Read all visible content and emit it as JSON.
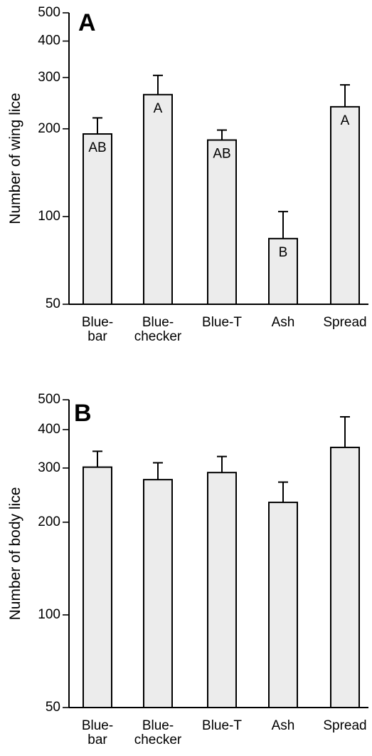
{
  "chart_data": [
    {
      "type": "bar",
      "panel_label": "A",
      "ylabel": "Number of wing lice",
      "yscale": "log",
      "ylim": [
        50,
        500
      ],
      "yticks": [
        50,
        100,
        200,
        300,
        400,
        500
      ],
      "categories": [
        [
          "Blue-",
          "bar"
        ],
        [
          "Blue-",
          "checker"
        ],
        [
          "Blue-T"
        ],
        [
          "Ash"
        ],
        [
          "Spread"
        ]
      ],
      "values": [
        192,
        262,
        183,
        84,
        238
      ],
      "error_upper": [
        218,
        305,
        198,
        104,
        283
      ],
      "significance_labels": [
        "AB",
        "A",
        "AB",
        "B",
        "A"
      ],
      "grid": false
    },
    {
      "type": "bar",
      "panel_label": "B",
      "ylabel": "Number of body lice",
      "yscale": "log",
      "ylim": [
        50,
        500
      ],
      "yticks": [
        50,
        100,
        200,
        300,
        400,
        500
      ],
      "categories": [
        [
          "Blue-",
          "bar"
        ],
        [
          "Blue-",
          "checker"
        ],
        [
          "Blue-T"
        ],
        [
          "Ash"
        ],
        [
          "Spread"
        ]
      ],
      "values": [
        302,
        275,
        290,
        232,
        350
      ],
      "error_upper": [
        340,
        312,
        327,
        270,
        440
      ],
      "significance_labels": [],
      "grid": false
    }
  ]
}
